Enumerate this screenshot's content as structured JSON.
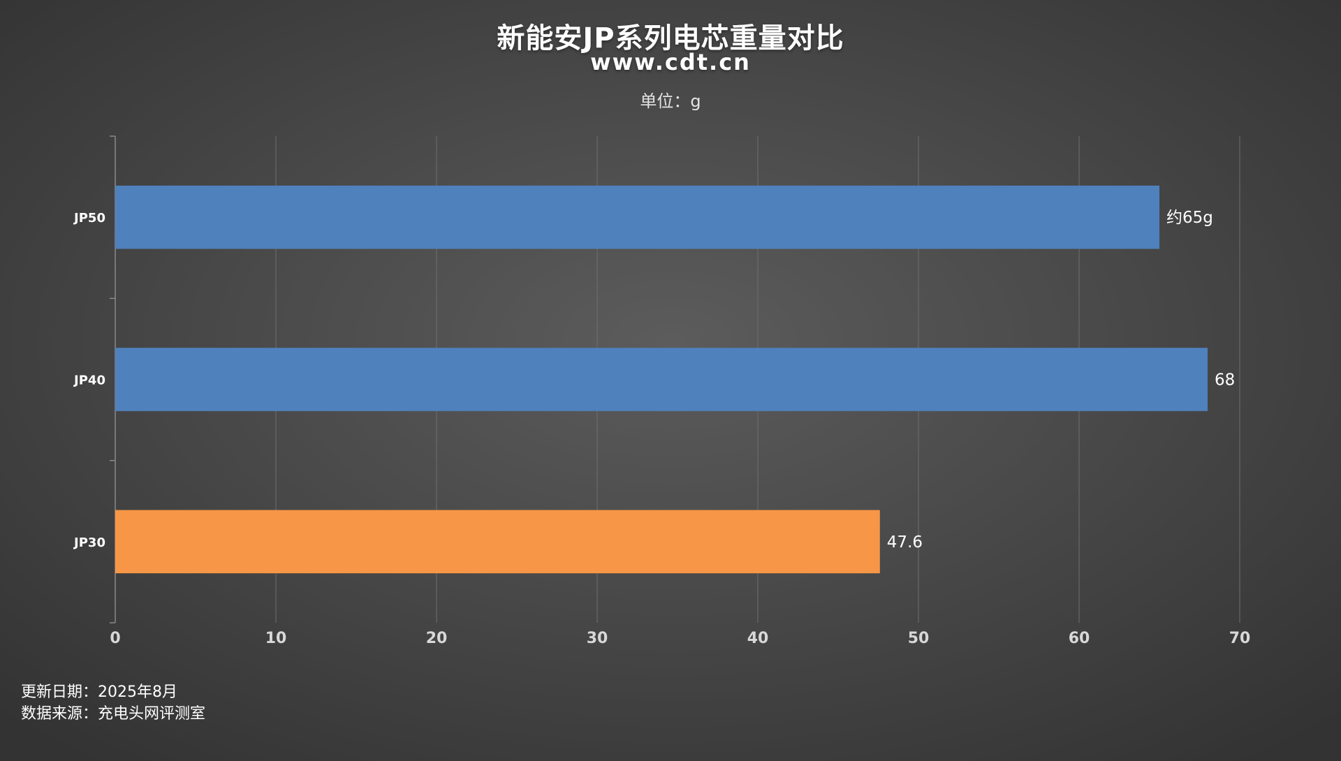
{
  "header": {
    "title": "新能安JP系列电芯重量对比",
    "subtitle": "www.cdt.cn",
    "unit": "单位：g"
  },
  "footer": {
    "update_date": "更新日期：2025年8月",
    "source": "数据来源：充电头网评测室"
  },
  "colors": {
    "blue": "#4f81bd",
    "orange": "#f79646"
  },
  "chart_data": {
    "type": "bar",
    "orientation": "horizontal",
    "categories": [
      "JP50",
      "JP40",
      "JP30"
    ],
    "values": [
      65,
      68,
      47.6
    ],
    "data_labels": [
      "约65g",
      "68",
      "47.6"
    ],
    "bar_colors": [
      "#4f81bd",
      "#4f81bd",
      "#f79646"
    ],
    "xlim": [
      0,
      70
    ],
    "xticks": [
      0,
      10,
      20,
      30,
      40,
      50,
      60,
      70
    ],
    "grid": "vertical",
    "legend": "none"
  }
}
